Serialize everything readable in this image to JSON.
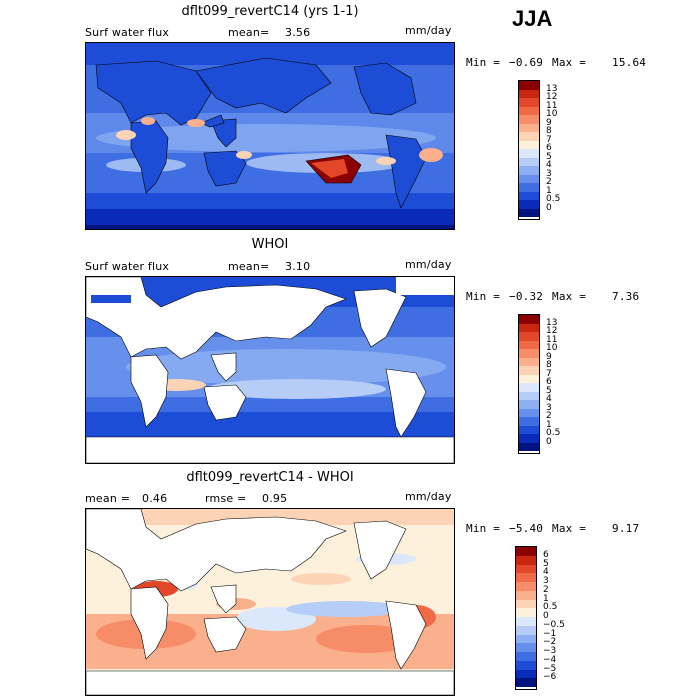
{
  "season": "JJA",
  "panels": [
    {
      "title": "dflt099_revertC14 (yrs 1-1)",
      "left_text": "Surf water flux",
      "mean_label": "mean=",
      "mean_value": "3.56",
      "units": "mm/day",
      "min_label": "Min =",
      "min_value": "−0.69",
      "max_label": "Max =",
      "max_value": "15.64",
      "colorbar_labels": [
        "13",
        "12",
        "11",
        "10",
        "9",
        "8",
        "7",
        "6",
        "5",
        "4",
        "3",
        "2",
        "1",
        "0.5",
        "0"
      ]
    },
    {
      "title": "WHOI",
      "left_text": "Surf water flux",
      "mean_label": "mean=",
      "mean_value": "3.10",
      "units": "mm/day",
      "min_label": "Min =",
      "min_value": "−0.32",
      "max_label": "Max =",
      "max_value": "7.36",
      "colorbar_labels": [
        "13",
        "12",
        "11",
        "10",
        "9",
        "8",
        "7",
        "6",
        "5",
        "4",
        "3",
        "2",
        "1",
        "0.5",
        "0"
      ]
    },
    {
      "title": "dflt099_revertC14 - WHOI",
      "mean_label": "mean =",
      "mean_value": "0.46",
      "rmse_label": "rmse =",
      "rmse_value": "0.95",
      "units": "mm/day",
      "min_label": "Min =",
      "min_value": "−5.40",
      "max_label": "Max =",
      "max_value": "9.17",
      "colorbar_labels": [
        "6",
        "5",
        "4",
        "3",
        "2",
        "1",
        "0.5",
        "0",
        "−0.5",
        "−1",
        "−2",
        "−3",
        "−4",
        "−5",
        "−6"
      ]
    }
  ],
  "colors": {
    "abs_scale": [
      "#8b0000",
      "#c8260f",
      "#e2472a",
      "#f06a46",
      "#f78c68",
      "#fbb08d",
      "#fdd3b5",
      "#fdf1dc",
      "#dbe8fb",
      "#b5cdf7",
      "#8eb0f2",
      "#6690ec",
      "#3f6ee2",
      "#1d4cd6",
      "#0a2bb8",
      "#00137f"
    ],
    "diff_scale": [
      "#8b0000",
      "#c8260f",
      "#e2472a",
      "#f06a46",
      "#f78c68",
      "#fbb08d",
      "#fdd3b5",
      "#fdf1dc",
      "#dbe8fb",
      "#b5cdf7",
      "#8eb0f2",
      "#6690ec",
      "#3f6ee2",
      "#1d4cd6",
      "#0a2bb8",
      "#00137f"
    ]
  }
}
